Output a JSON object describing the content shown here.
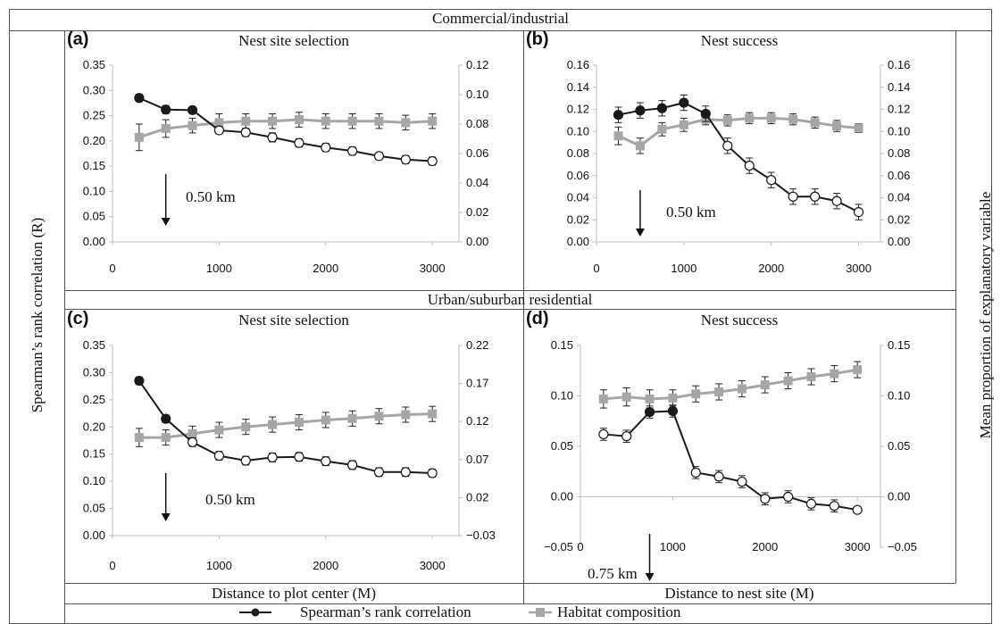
{
  "sections": {
    "top": "Commercial/industrial",
    "middle": "Urban/suburban residential"
  },
  "y_axis_left_label": "Spearman’s rank correlation (R)",
  "y_axis_right_label": "Mean proportion of explanatory variable",
  "x_axis_labels": {
    "left": "Distance to plot center (M)",
    "right": "Distance to nest site (M)"
  },
  "legend": {
    "series_a": "Spearman’s rank correlation",
    "series_b": "Habitat composition"
  },
  "colors": {
    "spearman": "#1a1a1a",
    "habitat": "#a6a6a6",
    "axis": "#bfbfbf"
  },
  "chart_data": [
    {
      "type": "line",
      "letter": "(a)",
      "title": "Nest site selection",
      "x": [
        250,
        500,
        750,
        1000,
        1250,
        1500,
        1750,
        2000,
        2250,
        2500,
        2750,
        3000
      ],
      "xlim": [
        0,
        3250
      ],
      "xticks": [
        0,
        1000,
        2000,
        3000
      ],
      "ylim": [
        0,
        0.35
      ],
      "yticks": [
        "0.00",
        "0.05",
        "0.10",
        "0.15",
        "0.20",
        "0.25",
        "0.30",
        "0.35"
      ],
      "ylim_right": [
        0,
        0.12
      ],
      "yticks_right": [
        "0.00",
        "0.02",
        "0.04",
        "0.06",
        "0.08",
        "0.10",
        "0.12"
      ],
      "series": [
        {
          "name": "Spearman’s rank correlation",
          "axis": "left",
          "values": [
            0.285,
            0.262,
            0.261,
            0.221,
            0.217,
            0.207,
            0.196,
            0.187,
            0.18,
            0.17,
            0.163,
            0.16
          ],
          "errors": [
            0.007,
            0.008,
            0.006,
            0.007,
            0.008,
            0.009,
            0.008,
            0.008,
            0.008,
            0.007,
            0.008,
            0.008
          ],
          "filled": [
            true,
            true,
            true,
            false,
            false,
            false,
            false,
            false,
            false,
            false,
            false,
            false
          ]
        },
        {
          "name": "Habitat composition",
          "axis": "right",
          "values": [
            0.071,
            0.077,
            0.079,
            0.081,
            0.082,
            0.082,
            0.083,
            0.082,
            0.082,
            0.082,
            0.081,
            0.082
          ],
          "errors": [
            0.009,
            0.006,
            0.005,
            0.006,
            0.005,
            0.005,
            0.005,
            0.005,
            0.005,
            0.005,
            0.005,
            0.005
          ]
        }
      ],
      "annotation": {
        "text": "0.50 km",
        "x": 500
      }
    },
    {
      "type": "line",
      "letter": "(b)",
      "title": "Nest success",
      "x": [
        250,
        500,
        750,
        1000,
        1250,
        1500,
        1750,
        2000,
        2250,
        2500,
        2750,
        3000
      ],
      "xlim": [
        0,
        3250
      ],
      "xticks": [
        0,
        1000,
        2000,
        3000
      ],
      "ylim": [
        0,
        0.16
      ],
      "yticks": [
        "0.00",
        "0.02",
        "0.04",
        "0.06",
        "0.08",
        "0.10",
        "0.12",
        "0.14",
        "0.16"
      ],
      "ylim_right": [
        0,
        0.16
      ],
      "yticks_right": [
        "0.00",
        "0.02",
        "0.04",
        "0.06",
        "0.08",
        "0.10",
        "0.12",
        "0.14",
        "0.16"
      ],
      "series": [
        {
          "name": "Spearman’s rank correlation",
          "axis": "left",
          "values": [
            0.115,
            0.119,
            0.121,
            0.126,
            0.116,
            0.087,
            0.069,
            0.056,
            0.041,
            0.041,
            0.037,
            0.027
          ],
          "errors": [
            0.007,
            0.007,
            0.007,
            0.007,
            0.007,
            0.007,
            0.007,
            0.007,
            0.007,
            0.007,
            0.007,
            0.007
          ],
          "filled": [
            true,
            true,
            true,
            true,
            true,
            false,
            false,
            false,
            false,
            false,
            false,
            false
          ]
        },
        {
          "name": "Habitat composition",
          "axis": "right",
          "values": [
            0.096,
            0.087,
            0.102,
            0.106,
            0.111,
            0.11,
            0.112,
            0.112,
            0.111,
            0.108,
            0.105,
            0.103
          ],
          "errors": [
            0.008,
            0.007,
            0.006,
            0.006,
            0.005,
            0.005,
            0.005,
            0.005,
            0.005,
            0.005,
            0.005,
            0.004
          ]
        }
      ],
      "annotation": {
        "text": "0.50 km",
        "x": 500
      }
    },
    {
      "type": "line",
      "letter": "(c)",
      "title": "Nest site selection",
      "x": [
        250,
        500,
        750,
        1000,
        1250,
        1500,
        1750,
        2000,
        2250,
        2500,
        2750,
        3000
      ],
      "xlim": [
        0,
        3250
      ],
      "xticks": [
        0,
        1000,
        2000,
        3000
      ],
      "ylim": [
        0,
        0.35
      ],
      "yticks": [
        "0.00",
        "0.05",
        "0.10",
        "0.15",
        "0.20",
        "0.25",
        "0.30",
        "0.35"
      ],
      "ylim_right": [
        -0.03,
        0.22
      ],
      "yticks_right": [
        "−0.03",
        "0.02",
        "0.07",
        "0.12",
        "0.17",
        "0.22"
      ],
      "series": [
        {
          "name": "Spearman’s rank correlation",
          "axis": "left",
          "values": [
            0.285,
            0.215,
            0.172,
            0.147,
            0.138,
            0.144,
            0.145,
            0.137,
            0.13,
            0.117,
            0.117,
            0.115
          ],
          "errors": [
            0.007,
            0.007,
            0.008,
            0.008,
            0.008,
            0.008,
            0.008,
            0.008,
            0.008,
            0.008,
            0.008,
            0.007
          ],
          "filled": [
            true,
            true,
            false,
            false,
            false,
            false,
            false,
            false,
            false,
            false,
            false,
            false
          ]
        },
        {
          "name": "Habitat composition",
          "axis": "right",
          "values": [
            0.099,
            0.099,
            0.104,
            0.109,
            0.113,
            0.116,
            0.119,
            0.122,
            0.124,
            0.127,
            0.129,
            0.13
          ],
          "errors": [
            0.012,
            0.01,
            0.01,
            0.01,
            0.01,
            0.01,
            0.01,
            0.01,
            0.01,
            0.01,
            0.01,
            0.01
          ]
        }
      ],
      "annotation": {
        "text": "0.50 km",
        "x": 500
      }
    },
    {
      "type": "line",
      "letter": "(d)",
      "title": "Nest success",
      "x": [
        250,
        500,
        750,
        1000,
        1250,
        1500,
        1750,
        2000,
        2250,
        2500,
        2750,
        3000
      ],
      "xlim": [
        0,
        3250
      ],
      "xticks": [
        0,
        1000,
        2000,
        3000
      ],
      "ylim": [
        -0.05,
        0.15
      ],
      "yticks": [
        "−0.05",
        "0.00",
        "0.05",
        "0.10",
        "0.15"
      ],
      "ylim_right": [
        -0.05,
        0.15
      ],
      "yticks_right": [
        "−0.05",
        "0.00",
        "0.05",
        "0.10",
        "0.15"
      ],
      "series": [
        {
          "name": "Spearman’s rank correlation",
          "axis": "left",
          "values": [
            0.062,
            0.06,
            0.084,
            0.085,
            0.024,
            0.02,
            0.015,
            -0.002,
            0.0,
            -0.007,
            -0.009,
            -0.013
          ],
          "errors": [
            0.006,
            0.006,
            0.006,
            0.006,
            0.006,
            0.006,
            0.006,
            0.006,
            0.006,
            0.006,
            0.006,
            0.0
          ],
          "filled": [
            false,
            false,
            true,
            true,
            false,
            false,
            false,
            false,
            false,
            false,
            false,
            false
          ]
        },
        {
          "name": "Habitat composition",
          "axis": "right",
          "values": [
            0.097,
            0.099,
            0.097,
            0.098,
            0.102,
            0.104,
            0.107,
            0.111,
            0.115,
            0.119,
            0.122,
            0.126
          ],
          "errors": [
            0.009,
            0.009,
            0.009,
            0.008,
            0.008,
            0.008,
            0.008,
            0.008,
            0.008,
            0.008,
            0.008,
            0.008
          ]
        }
      ],
      "annotation": {
        "text": "0.75 km",
        "x": 750
      }
    }
  ]
}
